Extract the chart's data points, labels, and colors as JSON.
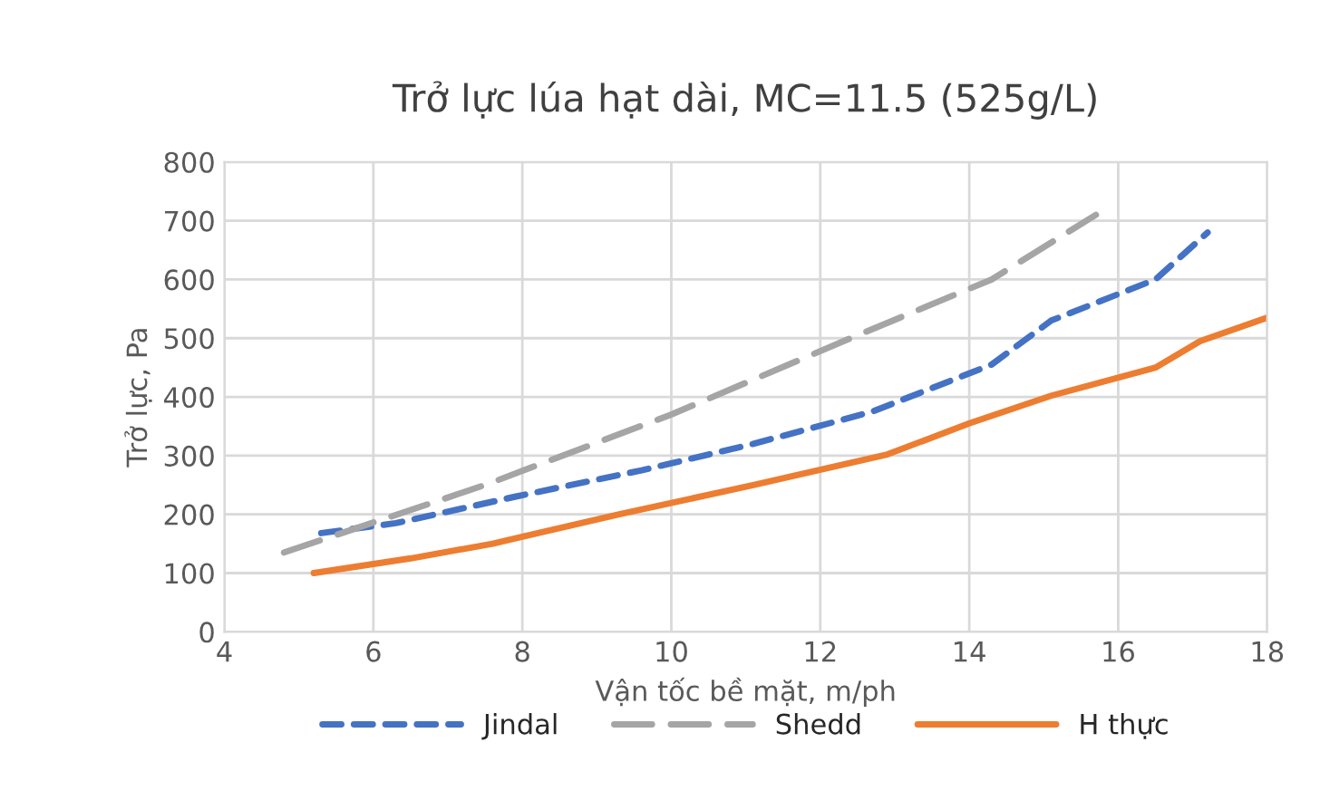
{
  "chart_data": {
    "type": "line",
    "title": "Trở lực lúa hạt dài, MC=11.5 (525g/L)",
    "xlabel": "Vận tốc bề mặt, m/ph",
    "ylabel": "Trở lực, Pa",
    "xlim": [
      4,
      18
    ],
    "xticks": [
      4,
      6,
      8,
      10,
      12,
      14,
      16,
      18
    ],
    "ylim": [
      0,
      800
    ],
    "yticks": [
      0,
      100,
      200,
      300,
      400,
      500,
      600,
      700,
      800
    ],
    "grid": true,
    "legend": "bottom",
    "series": [
      {
        "name": "Jindal",
        "color": "#4472c4",
        "line_style": "dashed",
        "x": [
          5.3,
          6.3,
          7.9,
          9.6,
          11.1,
          12.7,
          14.3,
          15.1,
          16.5,
          17.2
        ],
        "values": [
          168,
          185,
          230,
          275,
          320,
          375,
          455,
          530,
          600,
          680
        ]
      },
      {
        "name": "Shedd",
        "color": "#a5a5a5",
        "line_style": "longdash",
        "x": [
          4.8,
          7.5,
          10,
          12.5,
          14.3,
          15.7
        ],
        "values": [
          135,
          250,
          370,
          505,
          600,
          710
        ]
      },
      {
        "name": "H thực",
        "color": "#ed7d31",
        "line_style": "solid",
        "x": [
          5.2,
          6.5,
          7.6,
          8.0,
          9.3,
          11.1,
          12.9,
          14.0,
          15.1,
          16.5,
          17.1,
          18.0
        ],
        "values": [
          100,
          125,
          150,
          162,
          200,
          250,
          302,
          355,
          402,
          450,
          495,
          535
        ]
      }
    ]
  }
}
